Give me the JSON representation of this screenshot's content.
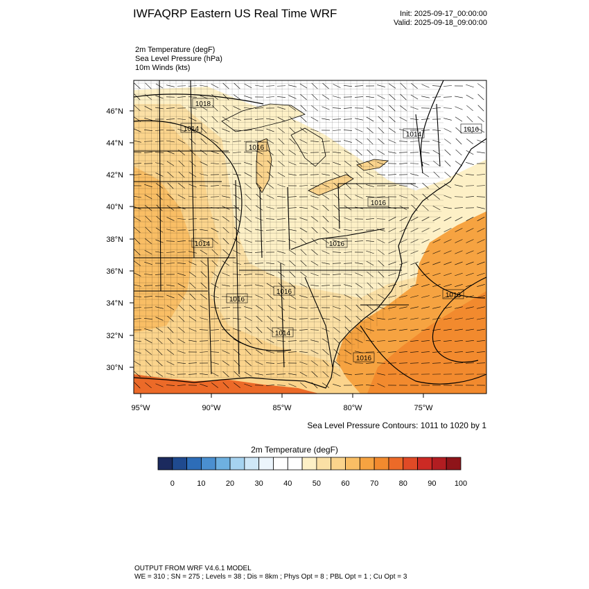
{
  "header": {
    "title": "IWFAQRP Eastern US Real Time WRF",
    "init": "Init: 2025-09-17_00:00:00",
    "valid": "Valid: 2025-09-18_09:00:00"
  },
  "fields": [
    "2m Temperature   (degF)",
    "Sea Level Pressure   (hPa)",
    "10m Winds   (kts)"
  ],
  "map": {
    "lon_labels": [
      "95°W",
      "90°W",
      "85°W",
      "80°W",
      "75°W"
    ],
    "lat_labels": [
      "46°N",
      "44°N",
      "42°N",
      "40°N",
      "38°N",
      "36°N",
      "34°N",
      "32°N",
      "30°N"
    ],
    "pressure_labels": [
      "1018",
      "1014",
      "1016",
      "1014",
      "1016",
      "1016",
      "1014",
      "1016",
      "1016",
      "1016",
      "1014",
      "1016",
      "1016"
    ],
    "contour_info": "Sea Level Pressure Contours: 1011 to 1020 by 1",
    "colors": {
      "cold_background": "#ffffff",
      "warm_60": "#fdf0c6",
      "warm_70": "#fbd48c",
      "warm_75": "#f9be65",
      "warm_80": "#f6a341",
      "ocean_warm": "#f28a2e",
      "gulf_hot": "#ec6a28",
      "state_lines": "#000000"
    }
  },
  "colorbar": {
    "title": "2m Temperature  (degF)",
    "labels": [
      "0",
      "10",
      "20",
      "30",
      "40",
      "50",
      "60",
      "70",
      "80",
      "90",
      "100"
    ],
    "colors": [
      "#1b2a5e",
      "#1f4a8f",
      "#2d6db8",
      "#4a8fd0",
      "#6eb0e0",
      "#a6d3f0",
      "#cfe7f7",
      "#ecf5fc",
      "#ffffff",
      "#ffffff",
      "#fdf0c6",
      "#fbe0a5",
      "#fbd48c",
      "#f9be65",
      "#f6a341",
      "#f28a2e",
      "#ec6a28",
      "#e04a26",
      "#cc2a24",
      "#b21d21",
      "#8e1419"
    ]
  },
  "footer": {
    "line1": "OUTPUT FROM WRF V4.6.1 MODEL",
    "line2": "WE = 310 ; SN = 275 ; Levels = 38 ; Dis = 8km ; Phys Opt = 8 ; PBL Opt = 1 ; Cu Opt = 3"
  }
}
